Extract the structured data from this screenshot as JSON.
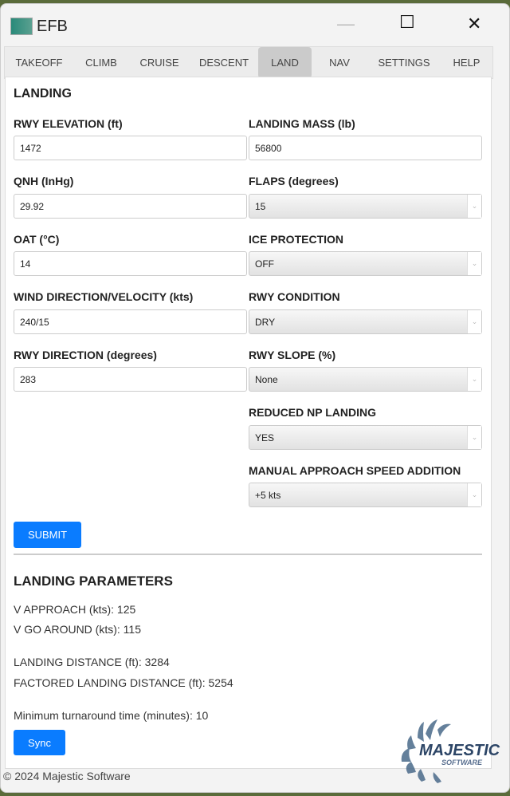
{
  "window": {
    "title": "EFB",
    "minimize": "—",
    "maximize": "☐",
    "close": "✕"
  },
  "tabs": [
    "TAKEOFF",
    "CLIMB",
    "CRUISE",
    "DESCENT",
    "LAND",
    "NAV",
    "SETTINGS",
    "HELP"
  ],
  "active_tab": "LAND",
  "section_title": "LANDING",
  "fields": {
    "rwy_elevation": {
      "label": "RWY ELEVATION (ft)",
      "value": "1472"
    },
    "landing_mass": {
      "label": "LANDING MASS (lb)",
      "value": "56800"
    },
    "qnh": {
      "label": "QNH (InHg)",
      "value": "29.92"
    },
    "flaps": {
      "label": "FLAPS (degrees)",
      "value": "15"
    },
    "oat": {
      "label": "OAT (°C)",
      "value": "14"
    },
    "ice": {
      "label": "ICE PROTECTION",
      "value": "OFF"
    },
    "wind": {
      "label": "WIND DIRECTION/VELOCITY (kts)",
      "value": "240/15"
    },
    "rwy_condition": {
      "label": "RWY CONDITION",
      "value": "DRY"
    },
    "rwy_direction": {
      "label": "RWY DIRECTION (degrees)",
      "value": "283"
    },
    "rwy_slope": {
      "label": "RWY SLOPE (%)",
      "value": "None"
    },
    "reduced_np": {
      "label": "REDUCED NP LANDING",
      "value": "YES"
    },
    "speed_add": {
      "label": "MANUAL APPROACH SPEED ADDITION",
      "value": "+5 kts"
    }
  },
  "submit": "SUBMIT",
  "results": {
    "title": "LANDING PARAMETERS",
    "vapp": "V APPROACH (kts): 125",
    "vga": "V GO AROUND (kts): 115",
    "ld": "LANDING DISTANCE (ft): 3284",
    "fld": "FACTORED LANDING DISTANCE (ft): 5254",
    "turnaround": "Minimum turnaround time (minutes): 10"
  },
  "sync": "Sync",
  "footer": "© 2024 Majestic Software",
  "logo": {
    "text": "MAJESTIC",
    "sub": "SOFTWARE"
  },
  "colors": {
    "accent": "#0a7cff"
  }
}
